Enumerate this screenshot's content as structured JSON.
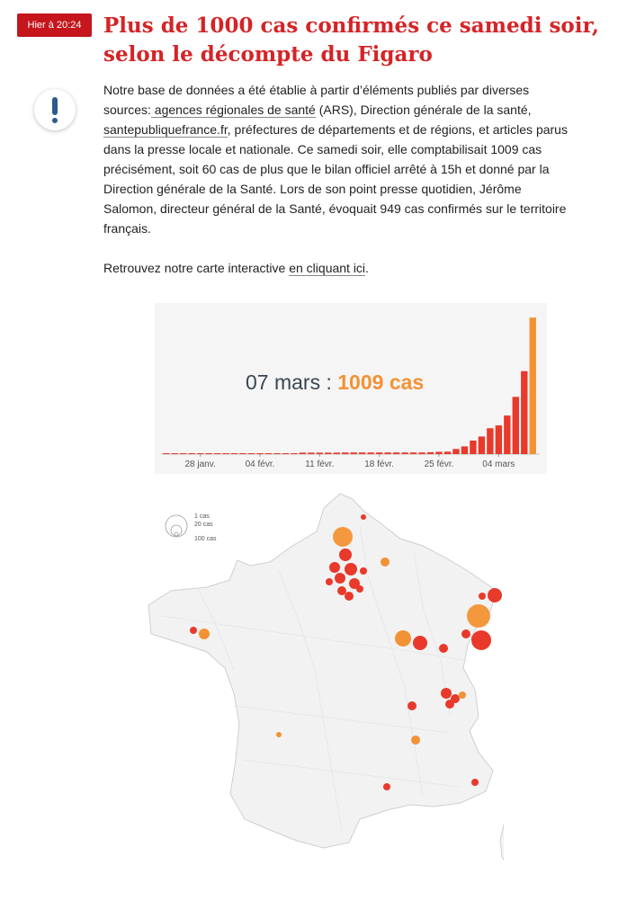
{
  "article": {
    "time_badge": "Hier à 20:24",
    "headline": "Plus de 1000 cas confirmés ce samedi soir, selon le décompte du Figaro",
    "info_icon": "exclamation-icon",
    "p1_a": "Notre base de données a été établie à partir d’éléments publiés par diverses sources:",
    "p1_link1": " agences régionales de santé",
    "p1_b": " (ARS), Direction générale de la santé,",
    "p1_link2": " santepubliquefrance.fr",
    "p1_c": ", préfectures de départements et de régions, et articles parus dans la presse locale et nationale. Ce samedi soir, elle comptabilisait 1009 cas précisément, soit 60 cas de plus que le bilan officiel arrêté à 15h et donné par la Direction générale de la Santé. Lors de son point presse quotidien, Jérôme Salomon, directeur général de la Santé, évoquait 949 cas confirmés sur le territoire français.",
    "p2_a": "Retrouvez notre carte interactive ",
    "p2_link": "en cliquant ici",
    "p2_b": "."
  },
  "colors": {
    "accent": "#d42427",
    "badge": "#c4161c",
    "bar": "#e8392b",
    "highlight": "#f39234",
    "chart_bg": "#f5f5f5"
  },
  "chart_data": {
    "type": "bar",
    "annotation_date": "07 mars",
    "annotation_sep": " : ",
    "annotation_value": "1009 cas",
    "x_tick_labels": [
      "28 janv.",
      "04 févr.",
      "11 févr.",
      "18 févr.",
      "25 févr.",
      "04 mars"
    ],
    "categories": [
      "24 janv.",
      "25 janv.",
      "26 janv.",
      "27 janv.",
      "28 janv.",
      "29 janv.",
      "30 janv.",
      "31 janv.",
      "01 févr.",
      "02 févr.",
      "03 févr.",
      "04 févr.",
      "05 févr.",
      "06 févr.",
      "07 févr.",
      "08 févr.",
      "09 févr.",
      "10 févr.",
      "11 févr.",
      "12 févr.",
      "13 févr.",
      "14 févr.",
      "15 févr.",
      "16 févr.",
      "17 févr.",
      "18 févr.",
      "19 févr.",
      "20 févr.",
      "21 févr.",
      "22 févr.",
      "23 févr.",
      "24 févr.",
      "25 févr.",
      "26 févr.",
      "27 févr.",
      "28 févr.",
      "29 févr.",
      "01 mars",
      "02 mars",
      "03 mars",
      "04 mars",
      "05 mars",
      "06 mars",
      "07 mars"
    ],
    "values": [
      3,
      3,
      3,
      3,
      4,
      5,
      6,
      6,
      6,
      6,
      6,
      6,
      6,
      6,
      6,
      6,
      11,
      11,
      11,
      11,
      11,
      12,
      12,
      12,
      12,
      12,
      12,
      12,
      12,
      12,
      12,
      14,
      17,
      18,
      38,
      57,
      100,
      130,
      191,
      212,
      285,
      423,
      613,
      1009
    ],
    "highlight_last": true,
    "ylim": [
      0,
      1050
    ],
    "title": "",
    "xlabel": "",
    "ylabel": ""
  },
  "map": {
    "legend": [
      "1 cas",
      "20 cas",
      "100 cas"
    ]
  }
}
